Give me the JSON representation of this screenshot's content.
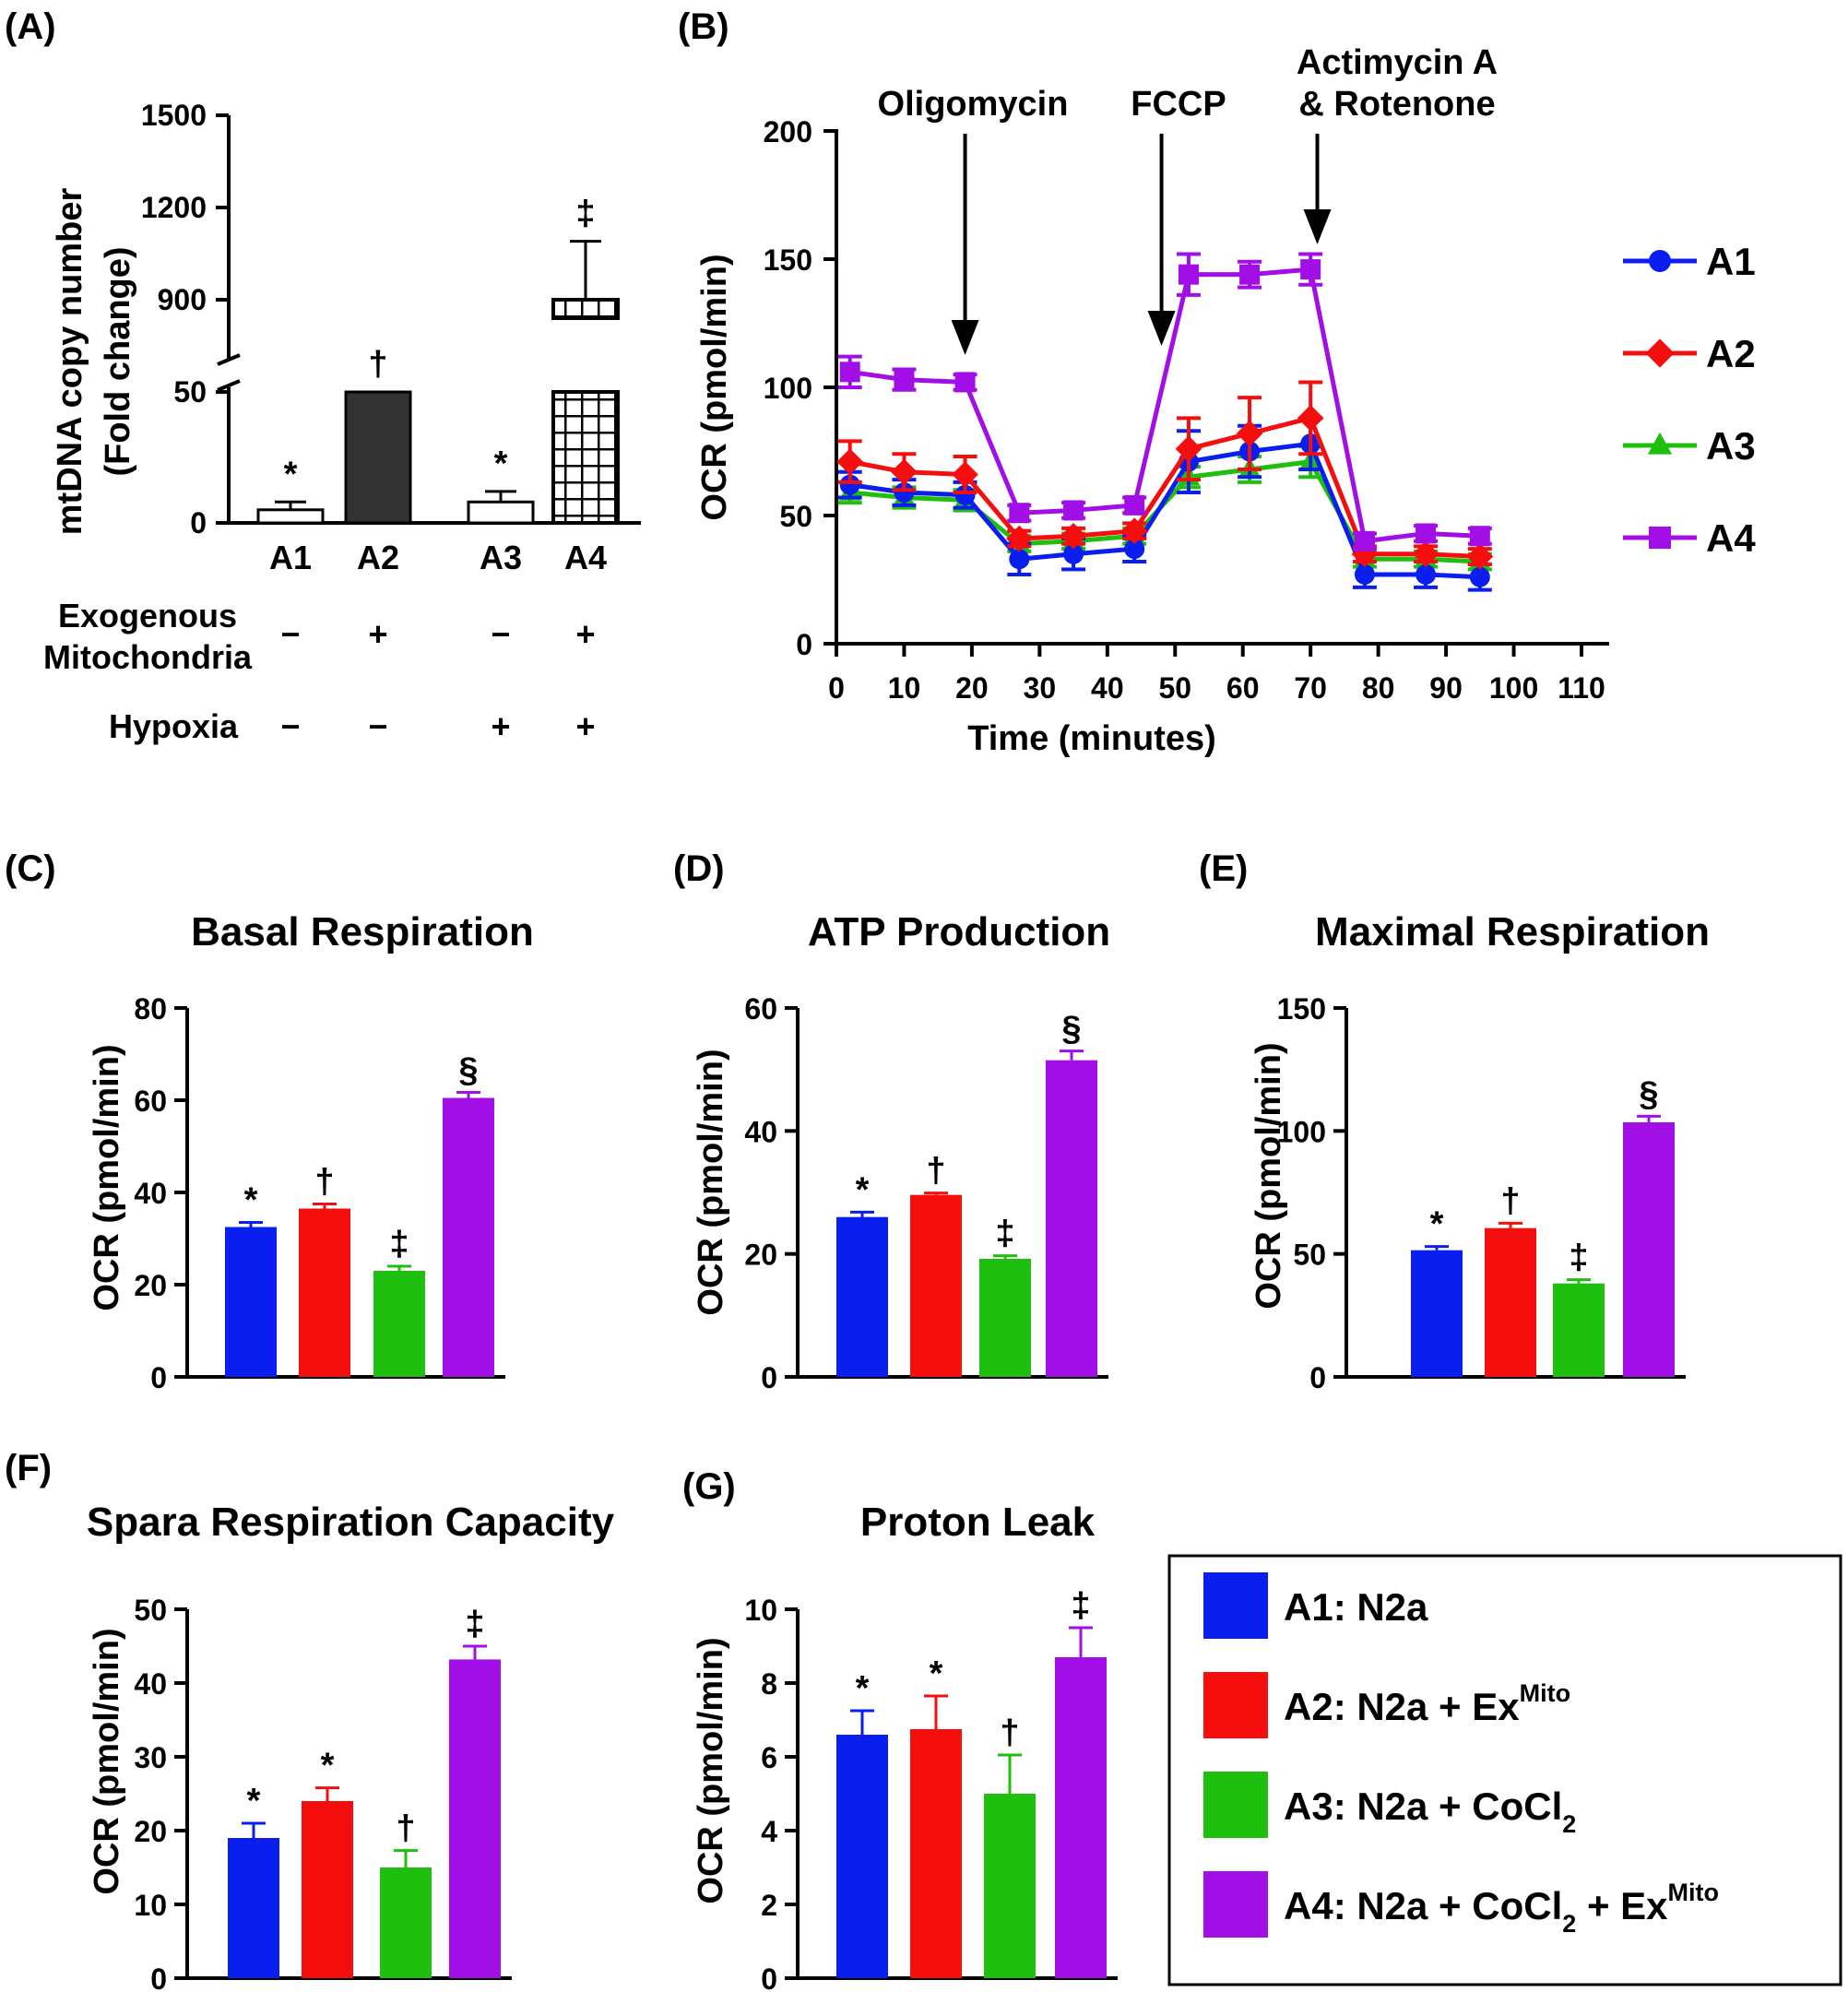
{
  "colors": {
    "A1": "#0a1ef0",
    "A2": "#f40e0e",
    "A3": "#1fbf0f",
    "A4": "#a10fe6",
    "black": "#000000",
    "darkbar": "#333333"
  },
  "chart_data": [
    {
      "id": "A",
      "panel": "(A)",
      "type": "bar",
      "ylabel_line1": "mtDNA copy number",
      "ylabel_line2": "(Fold change)",
      "categories": [
        "A1",
        "A2",
        "A3",
        "A4"
      ],
      "values": [
        5,
        50,
        8,
        900
      ],
      "errors": [
        3,
        0,
        4,
        190
      ],
      "significance": [
        "*",
        "†",
        "*",
        "‡"
      ],
      "yticks": [
        "0",
        "50",
        "900",
        "1200",
        "1500"
      ],
      "ylim_lower": [
        0,
        50
      ],
      "ylim_upper": [
        840,
        1500
      ],
      "conditions": [
        {
          "label_line1": "Exogenous",
          "label_line2": "Mitochondria",
          "values": [
            "−",
            "+",
            "−",
            "+"
          ]
        },
        {
          "label_line1": "Hypoxia",
          "label_line2": "",
          "values": [
            "−",
            "−",
            "+",
            "+"
          ]
        }
      ]
    },
    {
      "id": "B",
      "panel": "(B)",
      "type": "line",
      "xlabel": "Time (minutes)",
      "ylabel": "OCR (pmol/min)",
      "xlim": [
        0,
        110
      ],
      "ylim": [
        0,
        200
      ],
      "xticks": [
        "0",
        "10",
        "20",
        "30",
        "40",
        "50",
        "60",
        "70",
        "80",
        "90",
        "100",
        "110"
      ],
      "yticks": [
        "0",
        "50",
        "100",
        "150",
        "200"
      ],
      "x": [
        2,
        10,
        19,
        27,
        35,
        44,
        52,
        61,
        70,
        78,
        87,
        95
      ],
      "series": [
        {
          "name": "A1",
          "marker": "circle",
          "values": [
            62,
            59,
            58,
            33,
            35,
            37,
            71,
            75,
            78,
            27,
            27,
            26
          ],
          "errors": [
            5,
            5,
            5,
            6,
            6,
            5,
            12,
            10,
            10,
            5,
            5,
            5
          ]
        },
        {
          "name": "A2",
          "marker": "diamond",
          "values": [
            71,
            67,
            66,
            41,
            42,
            44,
            76,
            82,
            88,
            35,
            35,
            34
          ],
          "errors": [
            8,
            7,
            7,
            3,
            3,
            3,
            12,
            14,
            14,
            3,
            3,
            3
          ]
        },
        {
          "name": "A3",
          "marker": "triangle",
          "values": [
            59,
            57,
            56,
            39,
            40,
            42,
            65,
            68,
            71,
            33,
            33,
            32
          ],
          "errors": [
            4,
            4,
            4,
            3,
            3,
            3,
            4,
            5,
            6,
            3,
            3,
            3
          ]
        },
        {
          "name": "A4",
          "marker": "square",
          "values": [
            106,
            103,
            102,
            51,
            52,
            54,
            144,
            144,
            146,
            40,
            43,
            42
          ],
          "errors": [
            6,
            4,
            3,
            3,
            3,
            3,
            8,
            5,
            6,
            3,
            3,
            3
          ]
        }
      ],
      "annotations": [
        {
          "line1": "Oligomycin",
          "line2": "",
          "x": 19
        },
        {
          "line1": "FCCP",
          "line2": "",
          "x": 48
        },
        {
          "line1": "Actimycin A",
          "line2": "& Rotenone",
          "x": 71
        }
      ],
      "legend": [
        "A1",
        "A2",
        "A3",
        "A4"
      ]
    },
    {
      "id": "C",
      "panel": "(C)",
      "type": "bar",
      "title": "Basal Respiration",
      "ylabel": "OCR (pmol/min)",
      "categories": [
        "A1",
        "A2",
        "A3",
        "A4"
      ],
      "values": [
        32.5,
        36.5,
        23,
        60.5
      ],
      "errors": [
        1,
        1,
        1,
        1.2
      ],
      "significance": [
        "*",
        "†",
        "‡",
        "§"
      ],
      "ylim": [
        0,
        80
      ],
      "yticks": [
        "0",
        "20",
        "40",
        "60",
        "80"
      ]
    },
    {
      "id": "D",
      "panel": "(D)",
      "type": "bar",
      "title": "ATP Production",
      "ylabel": "OCR (pmol/min)",
      "categories": [
        "A1",
        "A2",
        "A3",
        "A4"
      ],
      "values": [
        26,
        29.6,
        19.2,
        51.5
      ],
      "errors": [
        0.8,
        0.3,
        0.5,
        1.5
      ],
      "significance": [
        "*",
        "†",
        "‡",
        "§"
      ],
      "ylim": [
        0,
        60
      ],
      "yticks": [
        "0",
        "20",
        "40",
        "60"
      ]
    },
    {
      "id": "E",
      "panel": "(E)",
      "type": "bar",
      "title": "Maximal Respiration",
      "ylabel": "OCR (pmol/min)",
      "categories": [
        "A1",
        "A2",
        "A3",
        "A4"
      ],
      "values": [
        51.5,
        60.5,
        38,
        103.5
      ],
      "errors": [
        1.5,
        2,
        1.5,
        2.5
      ],
      "significance": [
        "*",
        "†",
        "‡",
        "§"
      ],
      "ylim": [
        0,
        150
      ],
      "yticks": [
        "0",
        "50",
        "100",
        "150"
      ]
    },
    {
      "id": "F",
      "panel": "(F)",
      "type": "bar",
      "title": "Spara Respiration Capacity",
      "ylabel": "OCR (pmol/min)",
      "categories": [
        "A1",
        "A2",
        "A3",
        "A4"
      ],
      "values": [
        19,
        24,
        15,
        43.2
      ],
      "errors": [
        2,
        1.8,
        2.3,
        1.8
      ],
      "significance": [
        "*",
        "*",
        "†",
        "‡"
      ],
      "ylim": [
        0,
        50
      ],
      "yticks": [
        "0",
        "10",
        "20",
        "30",
        "40",
        "50"
      ]
    },
    {
      "id": "G",
      "panel": "(G)",
      "type": "bar",
      "title": "Proton Leak",
      "ylabel": "OCR (pmol/min)",
      "categories": [
        "A1",
        "A2",
        "A3",
        "A4"
      ],
      "values": [
        6.6,
        6.75,
        5,
        8.7
      ],
      "errors": [
        0.65,
        0.9,
        1.05,
        0.8
      ],
      "significance": [
        "*",
        "*",
        "†",
        "‡"
      ],
      "ylim": [
        0,
        10
      ],
      "yticks": [
        "0",
        "2",
        "4",
        "6",
        "8",
        "10"
      ]
    }
  ],
  "legend_box": {
    "items": [
      {
        "key": "A1",
        "prefix": "A1: N2a",
        "sup1": "",
        "mid": "",
        "sub1": "",
        "tail": "",
        "sup2": ""
      },
      {
        "key": "A2",
        "prefix": "A2: N2a + Ex",
        "sup1": "Mito",
        "mid": "",
        "sub1": "",
        "tail": "",
        "sup2": ""
      },
      {
        "key": "A3",
        "prefix": "A3: N2a + CoCl",
        "sup1": "",
        "mid": "",
        "sub1": "2",
        "tail": "",
        "sup2": ""
      },
      {
        "key": "A4",
        "prefix": "A4: N2a + CoCl",
        "sup1": "",
        "mid": "",
        "sub1": "2",
        "tail": " + Ex",
        "sup2": "Mito"
      }
    ]
  }
}
